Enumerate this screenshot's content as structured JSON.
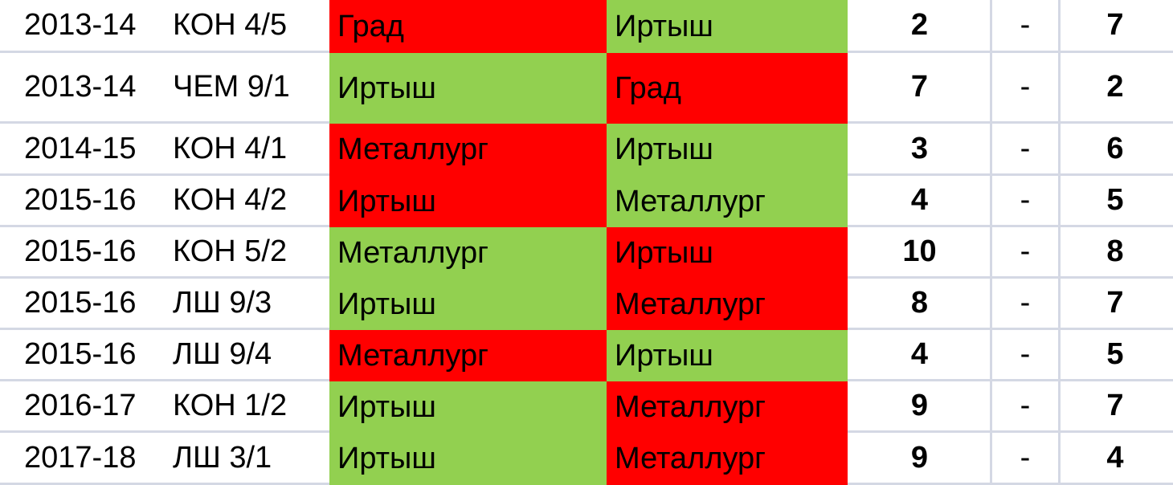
{
  "colors": {
    "win": "#92d050",
    "loss": "#ff0000",
    "gridline": "#d4d8e4"
  },
  "rows": [
    {
      "season": "2013-14",
      "code": "КОН 4/5",
      "home": "Град",
      "away": "Иртыш",
      "home_score": "2",
      "sep": "-",
      "away_score": "7",
      "home_result": "loss",
      "away_result": "win"
    },
    {
      "season": "2013-14",
      "code": "ЧЕМ 9/1",
      "home": "Иртыш",
      "away": "Град",
      "home_score": "7",
      "sep": "-",
      "away_score": "2",
      "home_result": "win",
      "away_result": "loss"
    },
    {
      "season": "2014-15",
      "code": "КОН 4/1",
      "home": "Металлург",
      "away": "Иртыш",
      "home_score": "3",
      "sep": "-",
      "away_score": "6",
      "home_result": "loss",
      "away_result": "win"
    },
    {
      "season": "2015-16",
      "code": "КОН 4/2",
      "home": "Иртыш",
      "away": "Металлург",
      "home_score": "4",
      "sep": "-",
      "away_score": "5",
      "home_result": "loss",
      "away_result": "win"
    },
    {
      "season": "2015-16",
      "code": "КОН 5/2",
      "home": "Металлург",
      "away": "Иртыш",
      "home_score": "10",
      "sep": "-",
      "away_score": "8",
      "home_result": "win",
      "away_result": "loss"
    },
    {
      "season": "2015-16",
      "code": "ЛШ 9/3",
      "home": "Иртыш",
      "away": "Металлург",
      "home_score": "8",
      "sep": "-",
      "away_score": "7",
      "home_result": "win",
      "away_result": "loss"
    },
    {
      "season": "2015-16",
      "code": "ЛШ 9/4",
      "home": "Металлург",
      "away": "Иртыш",
      "home_score": "4",
      "sep": "-",
      "away_score": "5",
      "home_result": "loss",
      "away_result": "win"
    },
    {
      "season": "2016-17",
      "code": "КОН 1/2",
      "home": "Иртыш",
      "away": "Металлург",
      "home_score": "9",
      "sep": "-",
      "away_score": "7",
      "home_result": "win",
      "away_result": "loss"
    },
    {
      "season": "2017-18",
      "code": "ЛШ 3/1",
      "home": "Иртыш",
      "away": "Металлург",
      "home_score": "9",
      "sep": "-",
      "away_score": "4",
      "home_result": "win",
      "away_result": "loss"
    }
  ]
}
